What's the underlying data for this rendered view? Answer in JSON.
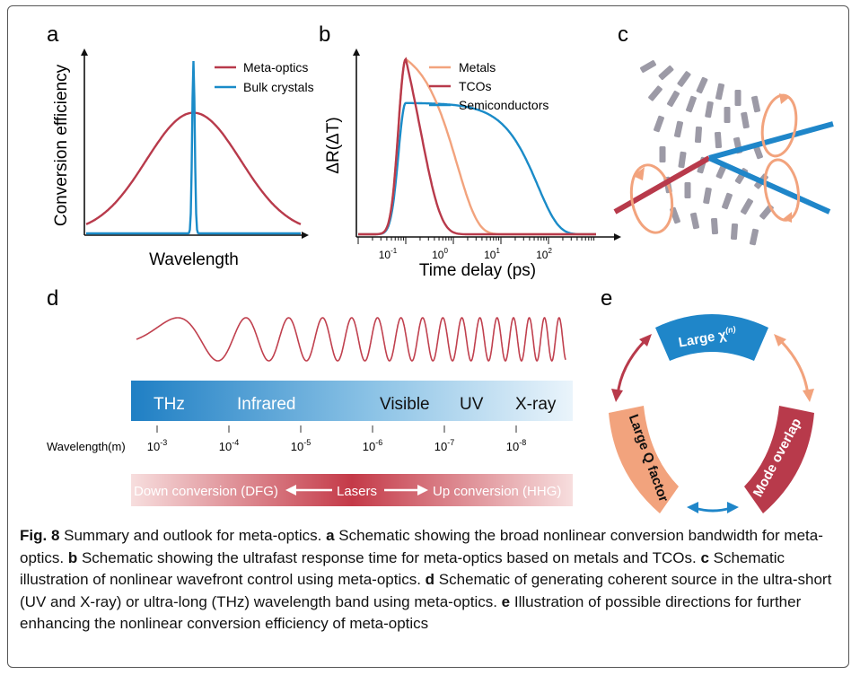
{
  "panel_labels": {
    "a": "a",
    "b": "b",
    "c": "c",
    "d": "d",
    "e": "e"
  },
  "chart_data": [
    {
      "type": "line",
      "panel": "a",
      "xlabel": "Wavelength",
      "ylabel": "Conversion efficiency",
      "series": [
        {
          "name": "Meta-optics",
          "color": "#b83a4b",
          "shape": "broad-gaussian",
          "peak": 0.7,
          "center": 0.5,
          "width": 0.22
        },
        {
          "name": "Bulk crystals",
          "color": "#1a8bc8",
          "shape": "narrow-peak",
          "peak": 1.0,
          "center": 0.5,
          "width": 0.006
        }
      ]
    },
    {
      "type": "line",
      "panel": "b",
      "xscale": "log",
      "xlabel": "Time delay (ps)",
      "ylabel": "ΔR(ΔT)",
      "xticks": [
        {
          "base": "10",
          "exp": "-1",
          "value": 0.1
        },
        {
          "base": "10",
          "exp": "0",
          "value": 1
        },
        {
          "base": "10",
          "exp": "1",
          "value": 10
        },
        {
          "base": "10",
          "exp": "2",
          "value": 100
        }
      ],
      "xlim": [
        0.01,
        1000
      ],
      "series": [
        {
          "name": "Metals",
          "color": "#f2a37d",
          "peak": 1.0,
          "decay_ps": 1.2
        },
        {
          "name": "TCOs",
          "color": "#b83a4b",
          "peak": 1.0,
          "decay_ps": 0.2
        },
        {
          "name": "Semiconductors",
          "color": "#1a8bc8",
          "peak": 0.75,
          "decay_ps": 60
        }
      ]
    }
  ],
  "panel_d": {
    "bands": [
      "THz",
      "Infrared",
      "Visible",
      "UV",
      "X-ray"
    ],
    "wavelength_label": "Wavelength(m)",
    "wavelength_ticks": [
      {
        "base": "10",
        "exp": "-3"
      },
      {
        "base": "10",
        "exp": "-4"
      },
      {
        "base": "10",
        "exp": "-5"
      },
      {
        "base": "10",
        "exp": "-6"
      },
      {
        "base": "10",
        "exp": "-7"
      },
      {
        "base": "10",
        "exp": "-8"
      }
    ],
    "down_conversion": "Down conversion (DFG)",
    "lasers": "Lasers",
    "up_conversion": "Up conversion (HHG)",
    "colors": {
      "band_start": "#1f7fc4",
      "band_end": "#eaf4fb",
      "conv_start": "#c43a48",
      "conv_end": "#f7dede",
      "wave": "#c0404e"
    }
  },
  "panel_e": {
    "large_chi": "Large χ",
    "chi_sup": "(n)",
    "large_q": "Large Q factor",
    "mode_overlap": "Mode overlap",
    "colors": {
      "chi": "#1f86c9",
      "q": "#f2a37d",
      "mode": "#b83a4b"
    }
  },
  "caption": {
    "fig": "Fig. 8",
    "title": " Summary and outlook for meta-optics. ",
    "a": "a",
    "a_text": " Schematic showing the broad nonlinear conversion bandwidth for meta-optics. ",
    "b": "b",
    "b_text": " Schematic showing the ultrafast response time for meta-optics based on metals and TCOs. ",
    "c": "c",
    "c_text": " Schematic illustration of nonlinear wavefront control using meta-optics. ",
    "d": "d",
    "d_text": " Schematic of generating coherent source in the ultra-short (UV and X-ray) or ultra-long (THz) wavelength band using meta-optics. ",
    "e": "e",
    "e_text": " Illustration of possible directions for further enhancing the nonlinear conversion efficiency of meta-optics"
  }
}
